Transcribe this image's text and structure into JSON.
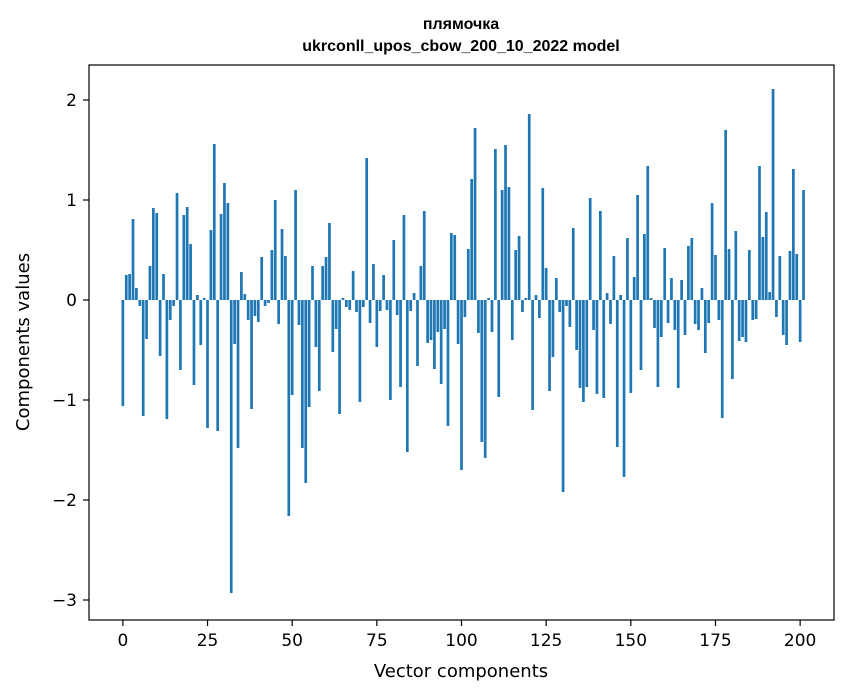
{
  "chart_data": {
    "type": "bar",
    "title_line1": "плямочка",
    "title_line2": "ukrconll_upos_cbow_200_10_2022 model",
    "xlabel": "Vector components",
    "ylabel": "Components values",
    "xlim": [
      -10,
      210
    ],
    "ylim": [
      -3.2,
      2.35
    ],
    "x_ticks": [
      0,
      25,
      50,
      75,
      100,
      125,
      150,
      175,
      200
    ],
    "y_ticks": [
      2,
      1,
      0,
      -1,
      -2,
      -3
    ],
    "y_tick_labels": [
      "2",
      "1",
      "0",
      "−1",
      "−2",
      "−3"
    ],
    "grid": false,
    "bar_color": "#1f77b4",
    "values": [
      -1.06,
      0.25,
      0.26,
      0.81,
      0.12,
      -0.06,
      -1.16,
      -0.39,
      0.34,
      0.92,
      0.87,
      -0.56,
      0.26,
      -1.19,
      -0.2,
      -0.06,
      1.07,
      -0.7,
      0.85,
      0.93,
      0.56,
      -0.85,
      0.05,
      -0.45,
      0.02,
      -1.28,
      0.7,
      1.56,
      -1.31,
      0.86,
      1.17,
      0.97,
      -2.93,
      -0.44,
      -1.48,
      0.28,
      0.06,
      -0.2,
      -1.09,
      -0.16,
      -0.22,
      0.43,
      -0.06,
      -0.03,
      0.5,
      1.0,
      -0.24,
      0.71,
      0.44,
      -2.16,
      -0.95,
      1.1,
      -0.25,
      -1.48,
      -1.83,
      -1.07,
      0.34,
      -0.47,
      -0.91,
      0.34,
      0.43,
      0.77,
      -0.52,
      -0.29,
      -1.14,
      0.02,
      -0.07,
      -0.1,
      0.29,
      -0.12,
      -1.02,
      -0.07,
      1.42,
      -0.23,
      0.36,
      -0.47,
      -0.11,
      0.25,
      -0.1,
      -1.0,
      0.6,
      -0.15,
      -0.87,
      0.85,
      -1.52,
      -0.11,
      0.07,
      -0.66,
      0.34,
      0.89,
      -0.43,
      -0.4,
      -0.69,
      -0.32,
      -0.84,
      -0.29,
      -1.26,
      0.67,
      0.65,
      -0.44,
      -1.7,
      -0.17,
      0.51,
      1.21,
      1.72,
      -0.33,
      -1.42,
      -1.58,
      0.02,
      -0.32,
      1.51,
      -0.97,
      1.1,
      1.55,
      1.13,
      -0.4,
      0.5,
      0.64,
      -0.12,
      0.02,
      1.86,
      -1.1,
      0.05,
      -0.18,
      1.12,
      0.32,
      -0.91,
      -0.57,
      0.22,
      -0.12,
      -1.92,
      -0.06,
      -0.27,
      0.72,
      -0.5,
      -0.88,
      -1.02,
      -0.87,
      1.02,
      -0.3,
      -0.94,
      0.89,
      -0.98,
      0.07,
      -0.24,
      0.44,
      -1.47,
      0.05,
      -1.77,
      0.62,
      -0.93,
      0.23,
      1.05,
      -0.7,
      0.66,
      1.34,
      0.02,
      -0.28,
      -0.87,
      -0.37,
      0.52,
      -0.23,
      0.22,
      -0.3,
      -0.88,
      0.2,
      -0.35,
      0.54,
      0.62,
      -0.24,
      -0.3,
      0.12,
      -0.53,
      -0.23,
      0.97,
      0.45,
      -0.2,
      -1.18,
      1.7,
      0.51,
      -0.79,
      0.69,
      -0.41,
      -0.37,
      -0.42,
      0.5,
      -0.2,
      -0.19,
      1.34,
      0.63,
      0.88,
      0.08,
      2.11,
      -0.17,
      0.44,
      -0.35,
      -0.45,
      0.49,
      1.31,
      0.46,
      -0.42,
      1.1
    ]
  }
}
